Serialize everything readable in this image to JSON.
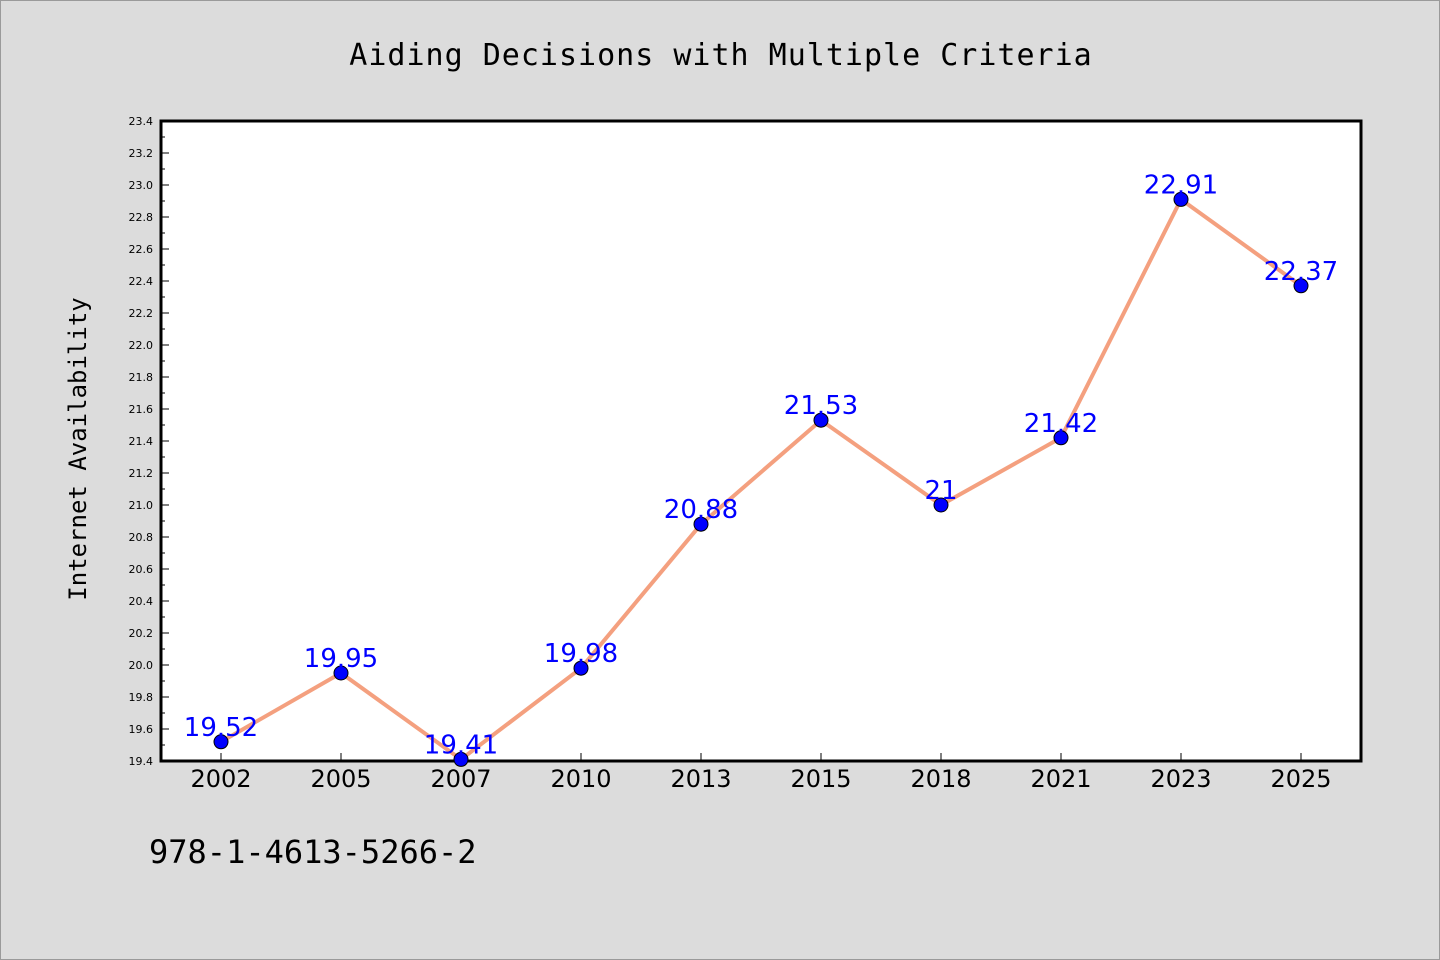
{
  "footnote": "978-1-4613-5266-2",
  "colors": {
    "background": "#dcdcdc",
    "plot_background": "#ffffff",
    "line": "#f4a07f",
    "marker": "#0000ff",
    "data_label": "#0000ff"
  },
  "chart_data": {
    "type": "line",
    "title": "Aiding Decisions with Multiple Criteria",
    "xlabel": "",
    "ylabel": "Internet Availability",
    "categories": [
      "2002",
      "2005",
      "2007",
      "2010",
      "2013",
      "2015",
      "2018",
      "2021",
      "2023",
      "2025"
    ],
    "series": [
      {
        "values": [
          19.52,
          19.95,
          19.41,
          19.98,
          20.88,
          21.53,
          21,
          21.42,
          22.91,
          22.37
        ],
        "data_labels": [
          "19.52",
          "19.95",
          "19.41",
          "19.98",
          "20.88",
          "21.53",
          "21",
          "21.42",
          "22.91",
          "22.37"
        ]
      }
    ],
    "ylim": [
      19.4,
      23.4
    ],
    "yticks": [
      "19.4",
      "19.6",
      "19.8",
      "20.0",
      "20.2",
      "20.4",
      "20.6",
      "20.8",
      "21.0",
      "21.2",
      "21.4",
      "21.6",
      "21.8",
      "22.0",
      "22.2",
      "22.4",
      "22.6",
      "22.8",
      "23.0",
      "23.2",
      "23.4"
    ],
    "grid": false,
    "legend": "none",
    "markers": true
  }
}
